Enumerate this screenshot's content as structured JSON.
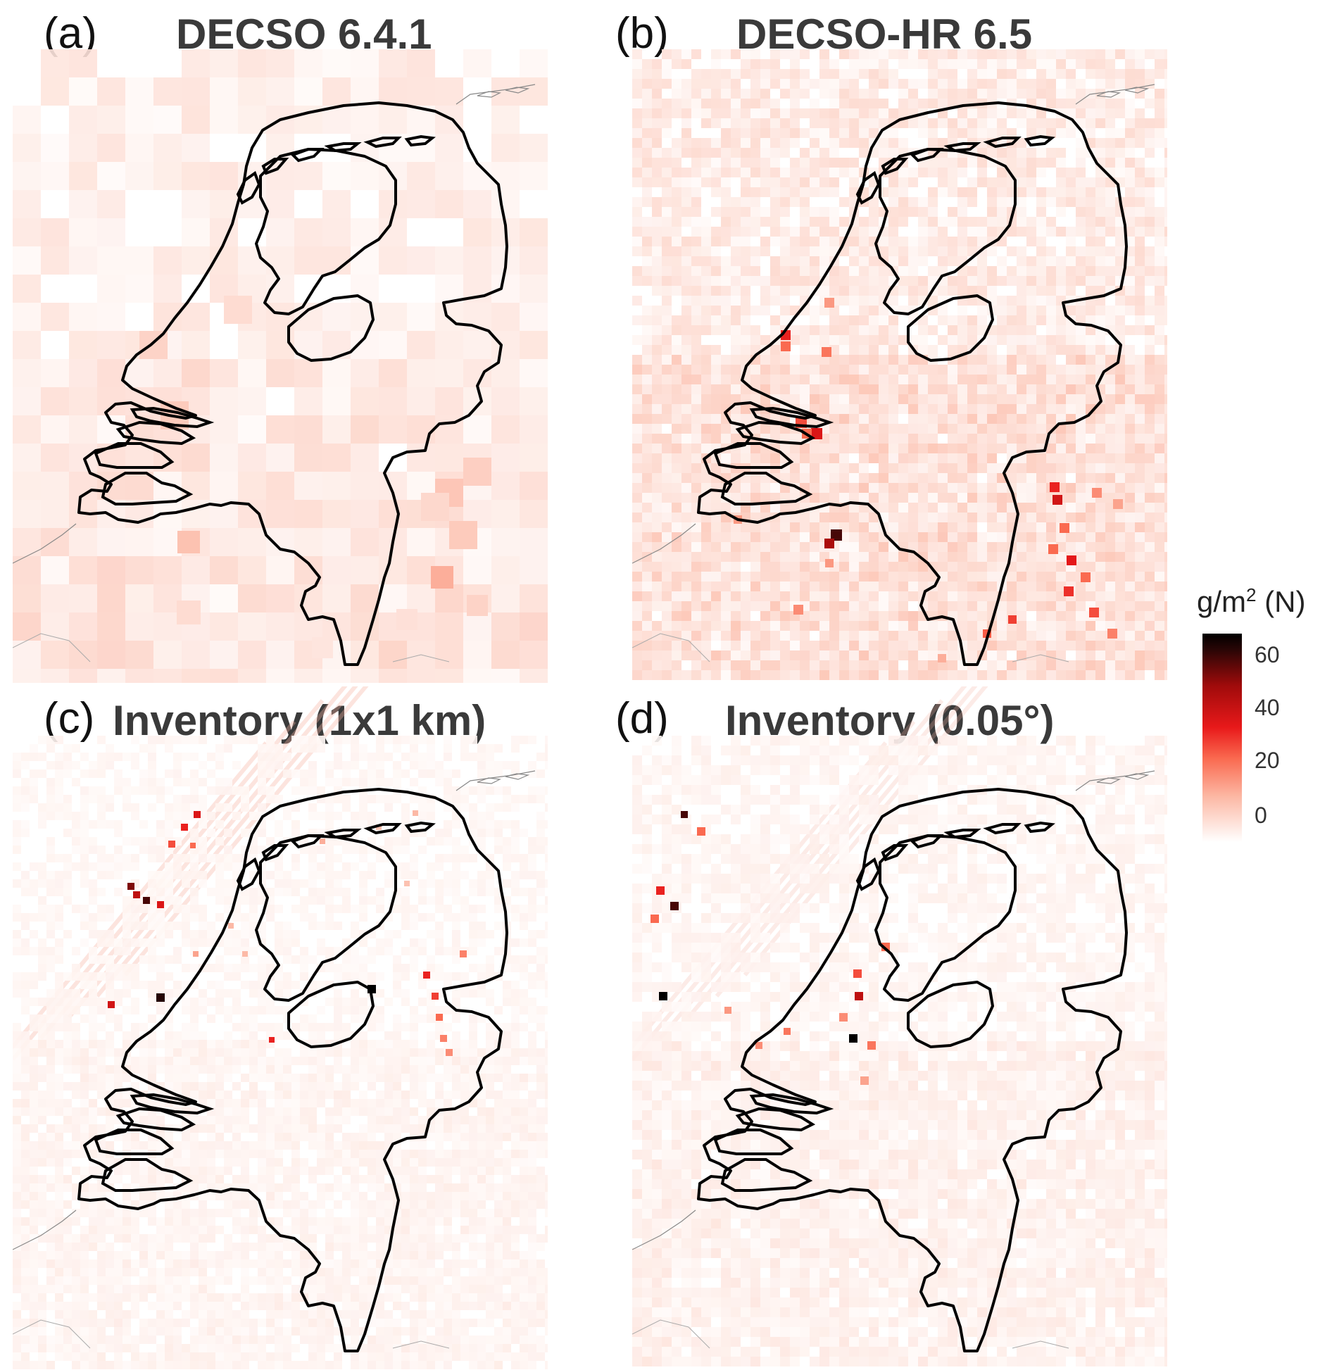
{
  "panels": [
    {
      "label": "(a)",
      "title": "DECSO 6.4.1"
    },
    {
      "label": "(b)",
      "title": "DECSO-HR 6.5"
    },
    {
      "label": "(c)",
      "title": "Inventory (1x1 km)"
    },
    {
      "label": "(d)",
      "title": "Inventory (0.05°)"
    }
  ],
  "legend": {
    "title_main": "g/m",
    "title_sup": "2",
    "title_unit": " (N)",
    "ticks": [
      "60",
      "40",
      "20",
      "0"
    ],
    "range": [
      0,
      75
    ],
    "colors": {
      "low": "#ffffff",
      "mid": "#e8191a",
      "high": "#000000"
    }
  },
  "colors": {
    "border": "#000000",
    "background": "#ffffff"
  }
}
